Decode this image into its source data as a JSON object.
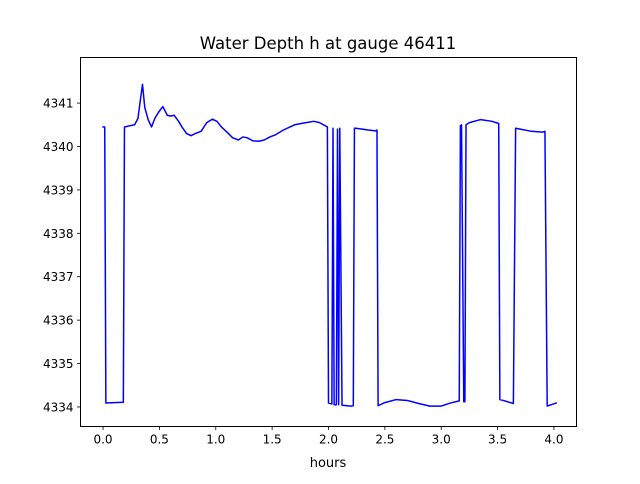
{
  "chart_data": {
    "type": "line",
    "title": "Water Depth h at gauge 46411",
    "xlabel": "hours",
    "ylabel": "",
    "xlim": [
      -0.2,
      4.2
    ],
    "ylim": [
      4333.55,
      4342.05
    ],
    "xticks": [
      0.0,
      0.5,
      1.0,
      1.5,
      2.0,
      2.5,
      3.0,
      3.5,
      4.0
    ],
    "xtick_labels": [
      "0.0",
      "0.5",
      "1.0",
      "1.5",
      "2.0",
      "2.5",
      "3.0",
      "3.5",
      "4.0"
    ],
    "yticks": [
      4334,
      4335,
      4336,
      4337,
      4338,
      4339,
      4340,
      4341
    ],
    "ytick_labels": [
      "4334",
      "4335",
      "4336",
      "4337",
      "4338",
      "4339",
      "4340",
      "4341"
    ],
    "grid": false,
    "line_color": "#0000ff",
    "series": [
      {
        "x": [
          0.0,
          0.015,
          0.025,
          0.18,
          0.19,
          0.28,
          0.31,
          0.33,
          0.35,
          0.37,
          0.4,
          0.43,
          0.46,
          0.49,
          0.53,
          0.57,
          0.6,
          0.63,
          0.67,
          0.7,
          0.74,
          0.78,
          0.82,
          0.87,
          0.92,
          0.97,
          1.01,
          1.05,
          1.1,
          1.15,
          1.2,
          1.24,
          1.28,
          1.33,
          1.38,
          1.43,
          1.48,
          1.53,
          1.6,
          1.7,
          1.8,
          1.87,
          1.92,
          1.97,
          1.99,
          2.0,
          2.03,
          2.04,
          2.05,
          2.07,
          2.08,
          2.09,
          2.1,
          2.12,
          2.2,
          2.22,
          2.23,
          2.24,
          2.3,
          2.35,
          2.42,
          2.43,
          2.44,
          2.5,
          2.6,
          2.7,
          2.8,
          2.9,
          3.0,
          3.08,
          3.16,
          3.17,
          3.18,
          3.2,
          3.21,
          3.22,
          3.25,
          3.35,
          3.45,
          3.51,
          3.52,
          3.55,
          3.64,
          3.66,
          3.7,
          3.8,
          3.9,
          3.92,
          3.94,
          4.02
        ],
        "y": [
          4340.45,
          4340.45,
          4334.09,
          4334.11,
          4340.45,
          4340.5,
          4340.65,
          4341.05,
          4341.43,
          4340.9,
          4340.62,
          4340.45,
          4340.65,
          4340.78,
          4340.92,
          4340.72,
          4340.7,
          4340.72,
          4340.58,
          4340.45,
          4340.3,
          4340.25,
          4340.3,
          4340.35,
          4340.55,
          4340.63,
          4340.58,
          4340.45,
          4340.33,
          4340.2,
          4340.15,
          4340.22,
          4340.2,
          4340.13,
          4340.12,
          4340.15,
          4340.22,
          4340.27,
          4340.38,
          4340.5,
          4340.55,
          4340.58,
          4340.55,
          4340.48,
          4340.45,
          4334.09,
          4334.07,
          4340.42,
          4334.05,
          4334.05,
          4340.4,
          4334.05,
          4340.42,
          4334.04,
          4334.02,
          4334.03,
          4340.42,
          4340.42,
          4340.4,
          4340.38,
          4340.36,
          4340.38,
          4334.03,
          4334.1,
          4334.17,
          4334.15,
          4334.08,
          4334.02,
          4334.02,
          4334.09,
          4334.14,
          4340.48,
          4340.5,
          4334.12,
          4334.12,
          4340.5,
          4340.55,
          4340.62,
          4340.58,
          4340.53,
          4334.17,
          4334.15,
          4334.08,
          4340.42,
          4340.4,
          4340.35,
          4340.33,
          4340.35,
          4334.02,
          4334.09
        ]
      }
    ]
  }
}
